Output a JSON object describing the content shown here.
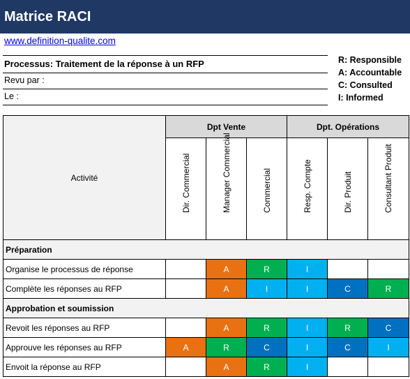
{
  "title": "Matrice RACI",
  "link": "www.definition-qualite.com",
  "process": "Processus: Traitement de la réponse à un RFP",
  "revu_par": "Revu par :",
  "le": "Le :",
  "legend": [
    "R: Responsible",
    "A: Accountable",
    "C: Consulted",
    "I: Informed"
  ],
  "colors": {
    "R": "#00b050",
    "A": "#e97112",
    "C": "#0070c0",
    "I": "#00b0f0",
    "title_bg": "#1f3864"
  },
  "table": {
    "activity_header": "Activité",
    "groups": [
      {
        "label": "Dpt Vente",
        "span": 3
      },
      {
        "label": "Dpt. Opérations",
        "span": 3
      }
    ],
    "roles": [
      "Dir. Commercial",
      "Manager Commercial",
      "Commercial",
      "Resp. Compte",
      "Dir. Produit",
      "Consultant Produit"
    ],
    "sections": [
      {
        "name": "Préparation",
        "rows": [
          {
            "activity": "Organise le processus de réponse",
            "cells": [
              "",
              "A",
              "R",
              "I",
              "",
              ""
            ]
          },
          {
            "activity": "Complète les réponses au RFP",
            "cells": [
              "",
              "A",
              "I",
              "I",
              "C",
              "R"
            ]
          }
        ]
      },
      {
        "name": "Approbation et soumission",
        "rows": [
          {
            "activity": "Revoit les réponses au RFP",
            "cells": [
              "",
              "A",
              "R",
              "I",
              "R",
              "C"
            ]
          },
          {
            "activity": "Approuve les réponses au RFP",
            "cells": [
              "A",
              "R",
              "C",
              "I",
              "C",
              "I"
            ]
          },
          {
            "activity": "Envoit la réponse au RFP",
            "cells": [
              "",
              "A",
              "R",
              "I",
              "",
              ""
            ]
          }
        ]
      }
    ]
  }
}
